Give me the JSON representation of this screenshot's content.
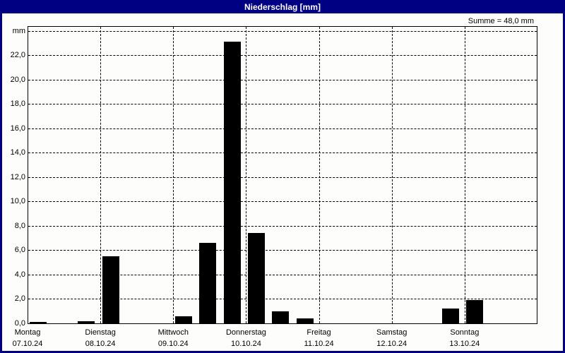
{
  "window": {
    "title": "Niederschlag [mm]"
  },
  "summary": {
    "text": "Summe = 48,0 mm"
  },
  "colors": {
    "titlebar_bg": "#000082",
    "titlebar_text": "#ffffff",
    "window_border": "#000082",
    "plot_background": "#fdfefb",
    "bar_fill": "#000000",
    "grid_line": "#000000",
    "axis_text": "#000000"
  },
  "chart_data": {
    "type": "bar",
    "title": "Niederschlag [mm]",
    "ylabel": "mm",
    "yticks": [
      "0,0",
      "2,0",
      "4,0",
      "6,0",
      "8,0",
      "10,0",
      "12,0",
      "14,0",
      "16,0",
      "18,0",
      "20,0",
      "22,0"
    ],
    "ytick_values": [
      0,
      2,
      4,
      6,
      8,
      10,
      12,
      14,
      16,
      18,
      20,
      22
    ],
    "top_gridline_value": 24,
    "ylim": [
      0,
      24.4
    ],
    "grid": "dashed",
    "sum_mm": 48.0,
    "bins_per_day": 3,
    "bin_hours": 8,
    "x_axis": {
      "days": [
        {
          "name": "Montag",
          "date": "07.10.24"
        },
        {
          "name": "Dienstag",
          "date": "08.10.24"
        },
        {
          "name": "Mittwoch",
          "date": "09.10.24"
        },
        {
          "name": "Donnerstag",
          "date": "10.10.24"
        },
        {
          "name": "Freitag",
          "date": "11.10.24"
        },
        {
          "name": "Samstag",
          "date": "12.10.24"
        },
        {
          "name": "Sonntag",
          "date": "13.10.24"
        }
      ]
    },
    "series": [
      {
        "day": "Montag",
        "date": "07.10.24",
        "bin": 0,
        "value_mm": 0.1
      },
      {
        "day": "Montag",
        "date": "07.10.24",
        "bin": 2,
        "value_mm": 0.2
      },
      {
        "day": "Dienstag",
        "date": "08.10.24",
        "bin": 0,
        "value_mm": 5.5
      },
      {
        "day": "Mittwoch",
        "date": "09.10.24",
        "bin": 0,
        "value_mm": 0.6
      },
      {
        "day": "Mittwoch",
        "date": "09.10.24",
        "bin": 1,
        "value_mm": 6.6
      },
      {
        "day": "Mittwoch",
        "date": "09.10.24",
        "bin": 2,
        "value_mm": 23.1
      },
      {
        "day": "Donnerstag",
        "date": "10.10.24",
        "bin": 0,
        "value_mm": 7.4
      },
      {
        "day": "Donnerstag",
        "date": "10.10.24",
        "bin": 1,
        "value_mm": 1.0
      },
      {
        "day": "Donnerstag",
        "date": "10.10.24",
        "bin": 2,
        "value_mm": 0.4
      },
      {
        "day": "Samstag",
        "date": "12.10.24",
        "bin": 2,
        "value_mm": 1.2
      },
      {
        "day": "Sonntag",
        "date": "13.10.24",
        "bin": 0,
        "value_mm": 1.9
      }
    ]
  }
}
